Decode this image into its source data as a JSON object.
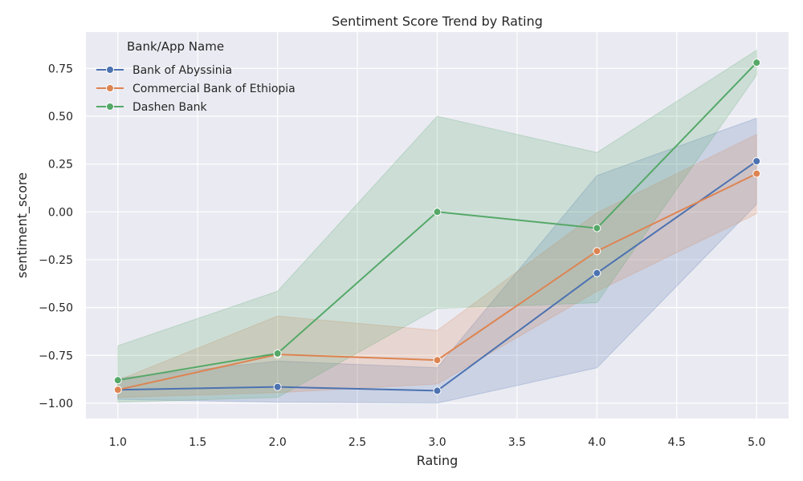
{
  "chart_data": {
    "type": "line",
    "title": "Sentiment Score Trend by Rating",
    "xlabel": "Rating",
    "ylabel": "sentiment_score",
    "xlim": [
      0.8,
      5.2
    ],
    "ylim": [
      -1.08,
      0.94
    ],
    "x_ticks": [
      1.0,
      1.5,
      2.0,
      2.5,
      3.0,
      3.5,
      4.0,
      4.5,
      5.0
    ],
    "x_tick_labels": [
      "1.0",
      "1.5",
      "2.0",
      "2.5",
      "3.0",
      "3.5",
      "4.0",
      "4.5",
      "5.0"
    ],
    "y_ticks": [
      -1.0,
      -0.75,
      -0.5,
      -0.25,
      0.0,
      0.25,
      0.5,
      0.75
    ],
    "y_tick_labels": [
      "−1.00",
      "−0.75",
      "−0.50",
      "−0.25",
      "0.00",
      "0.25",
      "0.50",
      "0.75"
    ],
    "grid": true,
    "legend_title": "Bank/App Name",
    "legend_position": "top-left",
    "x": [
      1,
      2,
      3,
      4,
      5
    ],
    "series": [
      {
        "name": "Bank of Abyssinia",
        "color": "#4c72b0",
        "values": [
          -0.93,
          -0.915,
          -0.935,
          -0.32,
          0.265
        ],
        "ci_low": [
          -0.98,
          -0.995,
          -1.0,
          -0.815,
          0.04
        ],
        "ci_high": [
          -0.87,
          -0.78,
          -0.815,
          0.19,
          0.49
        ]
      },
      {
        "name": "Commercial Bank of Ethiopia",
        "color": "#dd8452",
        "values": [
          -0.93,
          -0.745,
          -0.775,
          -0.205,
          0.2
        ],
        "ci_low": [
          -0.97,
          -0.945,
          -0.9,
          -0.415,
          -0.01
        ],
        "ci_high": [
          -0.88,
          -0.545,
          -0.62,
          -0.005,
          0.405
        ]
      },
      {
        "name": "Dashen Bank",
        "color": "#55a868",
        "values": [
          -0.88,
          -0.74,
          0.0,
          -0.085,
          0.78
        ],
        "ci_low": [
          -0.995,
          -0.97,
          -0.505,
          -0.475,
          0.715
        ],
        "ci_high": [
          -0.7,
          -0.415,
          0.5,
          0.31,
          0.845
        ]
      }
    ]
  }
}
